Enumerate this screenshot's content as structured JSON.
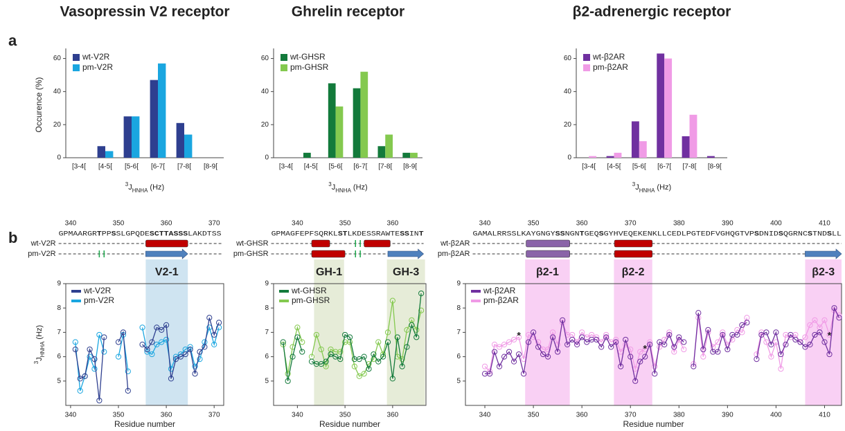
{
  "panel_labels": [
    "a",
    "b"
  ],
  "chart_data": [
    {
      "type": "bar",
      "title": "Vasopressin V2 receptor",
      "title_color": "#4a7ebb",
      "categories": [
        "[3-4[",
        "[4-5[",
        "[5-6[",
        "[6-7[",
        "[7-8[",
        "[8-9["
      ],
      "series": [
        {
          "name": "wt-V2R",
          "color": "#2e3f8f",
          "values": [
            0,
            7,
            25,
            47,
            21,
            0
          ]
        },
        {
          "name": "pm-V2R",
          "color": "#1aa6e0",
          "values": [
            0,
            4,
            25,
            57,
            14,
            0
          ]
        }
      ],
      "ylim": [
        0,
        64
      ],
      "yticks": [
        0,
        20,
        40,
        60
      ],
      "ylabel": "Occurence (%)",
      "xlabel": [
        "3",
        "J",
        "HNHA",
        "(Hz)"
      ]
    },
    {
      "type": "bar",
      "title": "Ghrelin receptor",
      "title_color": "#1aa64a",
      "categories": [
        "[3-4[",
        "[4-5[",
        "[5-6[",
        "[6-7[",
        "[7-8[",
        "[8-9["
      ],
      "series": [
        {
          "name": "wt-GHSR",
          "color": "#137a3b",
          "values": [
            0,
            3,
            45,
            42,
            7,
            3
          ]
        },
        {
          "name": "pm-GHSR",
          "color": "#84c94f",
          "values": [
            0,
            0,
            31,
            52,
            14,
            3
          ]
        }
      ],
      "ylim": [
        0,
        64
      ],
      "yticks": [
        0,
        20,
        40,
        60
      ],
      "xlabel": [
        "3",
        "J",
        "HNHA",
        "(Hz)"
      ]
    },
    {
      "type": "bar",
      "title": "β2-adrenergic receptor",
      "title_color": "#f07ad8",
      "categories": [
        "[3-4[",
        "[4-5[",
        "[5-6[",
        "[6-7[",
        "[7-8[",
        "[8-9["
      ],
      "series": [
        {
          "name": "wt-β2AR",
          "color": "#7030a0",
          "values": [
            0,
            1,
            22,
            63,
            13,
            1
          ]
        },
        {
          "name": "pm-β2AR",
          "color": "#f09be6",
          "values": [
            1,
            3,
            10,
            60,
            26,
            0
          ]
        }
      ],
      "ylim": [
        0,
        64
      ],
      "yticks": [
        0,
        20,
        40,
        60
      ],
      "xlabel": [
        "3",
        "J",
        "HNHA",
        "(Hz)"
      ]
    },
    {
      "type": "line",
      "xlabel": "Residue number",
      "ylabel": [
        "3",
        "J",
        "HNHA",
        "(Hz)"
      ],
      "x": [
        341,
        342,
        343,
        344,
        345,
        346,
        347,
        348,
        349,
        350,
        351,
        352,
        353,
        354,
        355,
        356,
        357,
        358,
        359,
        360,
        361,
        362,
        363,
        364,
        365,
        366,
        367,
        368,
        369,
        370,
        371
      ],
      "xlim": [
        339,
        372
      ],
      "xticks": [
        340,
        350,
        360,
        370
      ],
      "ylim": [
        4,
        9
      ],
      "yticks": [
        5,
        6,
        7,
        8,
        9
      ],
      "series": [
        {
          "name": "wt-V2R",
          "color": "#2e3f8f",
          "values": [
            6.3,
            5.1,
            5.2,
            6.3,
            5.9,
            4.2,
            6.8,
            null,
            null,
            6.6,
            7.0,
            4.6,
            null,
            null,
            6.5,
            6.3,
            6.6,
            7.2,
            7.1,
            7.3,
            5.1,
            5.9,
            6.0,
            6.1,
            6.3,
            5.3,
            6.2,
            6.4,
            7.6,
            6.9,
            7.4
          ]
        },
        {
          "name": "pm-V2R",
          "color": "#1aa6e0",
          "values": [
            6.6,
            4.6,
            5.2,
            6.0,
            5.5,
            6.9,
            6.2,
            null,
            null,
            6.0,
            6.9,
            5.4,
            null,
            null,
            7.2,
            6.2,
            6.1,
            6.5,
            6.6,
            6.7,
            5.5,
            6.0,
            6.1,
            6.3,
            6.4,
            5.6,
            5.9,
            6.6,
            7.2,
            6.5,
            7.2
          ]
        }
      ],
      "regions": [
        {
          "label": "V2-1",
          "start": 355.7,
          "end": 364.5,
          "color": "#cfe4f1",
          "label_color": "#4a7ebb"
        }
      ],
      "sequence": {
        "start": 338,
        "segments": [
          {
            "text": "GPMAARGR",
            "color": "#333333"
          },
          {
            "text": "T",
            "color": "#1aa64a"
          },
          {
            "text": "PP",
            "color": "#333333"
          },
          {
            "text": "S",
            "color": "#1aa64a"
          },
          {
            "text": "SLGPQDE",
            "color": "#333333"
          },
          {
            "text": "SCTTASSS",
            "color": "#1aa64a"
          },
          {
            "text": "LAKDTSS",
            "color": "#333333"
          }
        ]
      },
      "structure": [
        {
          "row": 0,
          "kind": "helix",
          "start": 355.7,
          "end": 364.5,
          "color": "#c00000"
        },
        {
          "row": 1,
          "kind": "bars",
          "start": 346,
          "end": 347,
          "color": "#1aa64a"
        },
        {
          "row": 1,
          "kind": "strand",
          "start": 355.7,
          "end": 364.5,
          "color": "#4f81bd"
        }
      ],
      "annotations": []
    },
    {
      "type": "line",
      "xlabel": "Residue number",
      "x": [
        337,
        338,
        339,
        340,
        341,
        342,
        343,
        344,
        345,
        346,
        347,
        348,
        349,
        350,
        351,
        352,
        353,
        354,
        355,
        356,
        357,
        358,
        359,
        360,
        361,
        362,
        363,
        364,
        365,
        366
      ],
      "xlim": [
        335,
        367
      ],
      "xticks": [
        340,
        350,
        360
      ],
      "ylim": [
        4,
        9
      ],
      "yticks": [
        5,
        6,
        7,
        8,
        9
      ],
      "series": [
        {
          "name": "wt-GHSR",
          "color": "#137a3b",
          "values": [
            6.6,
            5.0,
            6.0,
            6.8,
            6.2,
            null,
            5.8,
            5.7,
            5.7,
            5.8,
            6.1,
            6.0,
            5.9,
            6.9,
            6.8,
            5.9,
            5.9,
            6.0,
            5.5,
            6.1,
            5.8,
            6.0,
            6.6,
            5.1,
            6.8,
            5.6,
            6.4,
            7.3,
            6.8,
            8.6
          ]
        },
        {
          "name": "pm-GHSR",
          "color": "#84c94f",
          "values": [
            6.5,
            5.3,
            6.4,
            7.2,
            6.6,
            null,
            6.0,
            6.9,
            6.3,
            5.6,
            6.3,
            6.2,
            6.2,
            6.6,
            6.6,
            5.6,
            5.2,
            5.3,
            5.7,
            5.9,
            6.6,
            6.1,
            7.0,
            8.3,
            6.0,
            5.9,
            7.1,
            7.5,
            7.1,
            7.9
          ]
        }
      ],
      "regions": [
        {
          "label": "GH-1",
          "start": 343.5,
          "end": 349.8,
          "color": "#e6ecd8",
          "label_color": "#1aa64a"
        },
        {
          "label": "GH-3",
          "start": 358.8,
          "end": 366.8,
          "color": "#e6ecd8",
          "label_color": "#1aa64a"
        }
      ],
      "sequence": {
        "start": 335,
        "segments": [
          {
            "text": "GPMAGFEPFSQRKL",
            "color": "#333333"
          },
          {
            "text": "ST",
            "color": "#1aa64a"
          },
          {
            "text": "LKDESSRAWTE",
            "color": "#333333"
          },
          {
            "text": "SS",
            "color": "#1aa64a"
          },
          {
            "text": "IN",
            "color": "#333333"
          },
          {
            "text": "T",
            "color": "#1aa64a"
          }
        ]
      },
      "structure": [
        {
          "row": 0,
          "kind": "helix",
          "start": 343,
          "end": 346.8,
          "color": "#c00000"
        },
        {
          "row": 0,
          "kind": "bars",
          "start": 352.2,
          "end": 353.2,
          "color": "#1aa64a"
        },
        {
          "row": 0,
          "kind": "helix",
          "start": 354,
          "end": 359.5,
          "color": "#c00000"
        },
        {
          "row": 1,
          "kind": "helix",
          "start": 343,
          "end": 350,
          "color": "#c00000"
        },
        {
          "row": 1,
          "kind": "bars",
          "start": 352.2,
          "end": 353.2,
          "color": "#1aa64a"
        },
        {
          "row": 1,
          "kind": "strand",
          "start": 359,
          "end": 366.5,
          "color": "#4f81bd"
        }
      ],
      "annotations": []
    },
    {
      "type": "line",
      "xlabel": "Residue number",
      "x": [
        340,
        341,
        342,
        343,
        344,
        345,
        346,
        347,
        348,
        349,
        350,
        351,
        352,
        353,
        354,
        355,
        356,
        357,
        358,
        359,
        360,
        361,
        362,
        363,
        364,
        365,
        366,
        367,
        368,
        369,
        370,
        371,
        372,
        373,
        374,
        375,
        376,
        377,
        378,
        379,
        380,
        381,
        382,
        383,
        384,
        385,
        386,
        387,
        388,
        389,
        390,
        391,
        392,
        393,
        394,
        395,
        396,
        397,
        398,
        399,
        400,
        401,
        402,
        403,
        404,
        405,
        406,
        407,
        408,
        409,
        410,
        411,
        412,
        413
      ],
      "xlim": [
        336,
        413.5
      ],
      "xticks": [
        340,
        350,
        360,
        370,
        380,
        390,
        400,
        410
      ],
      "ylim": [
        4,
        9
      ],
      "yticks": [
        5,
        6,
        7,
        8,
        9
      ],
      "series": [
        {
          "name": "wt-β2AR",
          "color": "#7030a0",
          "values": [
            5.3,
            5.3,
            6.2,
            5.6,
            6.0,
            6.2,
            5.8,
            6.1,
            5.3,
            6.6,
            7.0,
            6.4,
            6.1,
            6.0,
            6.8,
            6.2,
            7.5,
            6.5,
            6.7,
            6.5,
            6.8,
            6.6,
            6.7,
            6.7,
            6.4,
            6.8,
            6.4,
            6.6,
            5.6,
            6.7,
            6.0,
            5.0,
            5.8,
            6.0,
            6.5,
            5.3,
            6.6,
            6.5,
            6.9,
            6.4,
            6.8,
            6.6,
            null,
            5.6,
            7.8,
            6.3,
            7.1,
            6.2,
            6.2,
            6.9,
            6.3,
            6.9,
            6.9,
            7.3,
            7.4,
            null,
            5.9,
            6.9,
            7.0,
            6.5,
            7.0,
            6.1,
            6.5,
            6.9,
            6.7,
            6.6,
            6.4,
            6.5,
            6.9,
            7.0,
            6.6,
            6.1,
            8.0,
            7.6
          ]
        },
        {
          "name": "pm-β2AR",
          "color": "#f09be6",
          "values": [
            5.6,
            5.4,
            6.5,
            6.4,
            6.5,
            6.6,
            6.7,
            6.8,
            5.9,
            6.9,
            6.8,
            6.6,
            6.3,
            6.3,
            7.0,
            6.5,
            7.4,
            6.9,
            6.9,
            6.6,
            7.0,
            6.8,
            6.9,
            6.8,
            6.6,
            6.9,
            6.6,
            6.7,
            6.2,
            6.5,
            6.3,
            5.5,
            6.2,
            6.3,
            6.6,
            5.6,
            6.4,
            6.7,
            7.0,
            6.2,
            6.7,
            6.3,
            null,
            5.7,
            7.6,
            6.0,
            7.0,
            6.4,
            6.6,
            7.0,
            6.5,
            6.7,
            7.1,
            7.0,
            7.6,
            null,
            6.1,
            7.0,
            6.6,
            6.0,
            6.6,
            5.5,
            6.9,
            6.8,
            6.9,
            6.6,
            6.8,
            7.3,
            7.5,
            7.2,
            7.5,
            6.9,
            7.9,
            7.7
          ]
        }
      ],
      "regions": [
        {
          "label": "β2-1",
          "start": 348.3,
          "end": 357.5,
          "color": "#f9d0f4",
          "label_color": "#f07ad8"
        },
        {
          "label": "β2-2",
          "start": 366.6,
          "end": 374.5,
          "color": "#f9d0f4",
          "label_color": "#f07ad8"
        },
        {
          "label": "β2-3",
          "start": 406,
          "end": 413.5,
          "color": "#f9d0f4",
          "label_color": "#f07ad8"
        }
      ],
      "sequence": {
        "start": 338,
        "segments": [
          {
            "text": "GAMALRRSSLKAYGNGY",
            "color": "#333333"
          },
          {
            "text": "SS",
            "color": "#2b4fd0"
          },
          {
            "text": "NGN",
            "color": "#333333"
          },
          {
            "text": "T",
            "color": "#e02020"
          },
          {
            "text": "GEQ",
            "color": "#333333"
          },
          {
            "text": "S",
            "color": "#e02020"
          },
          {
            "text": "GYHVEQEKENKLLCEDLPGTEDFVGHQGTVP",
            "color": "#333333"
          },
          {
            "text": "S",
            "color": "#e02020"
          },
          {
            "text": "DNID",
            "color": "#333333"
          },
          {
            "text": "S",
            "color": "#e02020"
          },
          {
            "text": "QGRNC",
            "color": "#333333"
          },
          {
            "text": "S",
            "color": "#e02020"
          },
          {
            "text": "TND",
            "color": "#333333"
          },
          {
            "text": "S",
            "color": "#e02020"
          },
          {
            "text": "LL",
            "color": "#333333"
          }
        ]
      },
      "structure": [
        {
          "row": 0,
          "kind": "box",
          "start": 348.5,
          "end": 357.5,
          "color": "#8a64a8"
        },
        {
          "row": 0,
          "kind": "helix",
          "start": 366.7,
          "end": 374.5,
          "color": "#c00000"
        },
        {
          "row": 1,
          "kind": "box",
          "start": 348.5,
          "end": 357.5,
          "color": "#8a64a8"
        },
        {
          "row": 1,
          "kind": "helix",
          "start": 366.7,
          "end": 374.5,
          "color": "#c00000"
        },
        {
          "row": 1,
          "kind": "strand",
          "start": 406,
          "end": 413.5,
          "color": "#4f81bd"
        }
      ],
      "annotations": [
        {
          "text": "*",
          "x": 347,
          "y": 6.85
        },
        {
          "text": "*",
          "x": 373,
          "y": 6.3
        },
        {
          "text": "*",
          "x": 411,
          "y": 6.85
        }
      ]
    }
  ]
}
